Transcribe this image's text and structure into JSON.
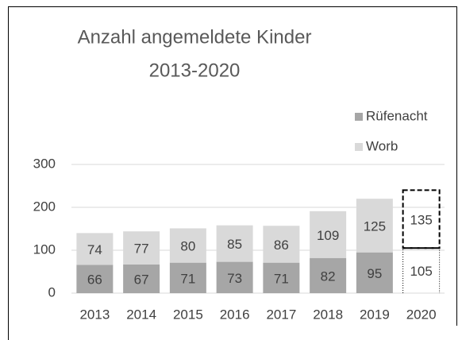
{
  "chart_data": {
    "type": "stacked-bar",
    "title": [
      "Anzahl angemeldete Kinder",
      "2013-2020"
    ],
    "categories": [
      "2013",
      "2014",
      "2015",
      "2016",
      "2017",
      "2018",
      "2019",
      "2020"
    ],
    "series": [
      {
        "name": "Rüfenacht",
        "color": "#a6a6a6",
        "values": [
          66,
          67,
          71,
          73,
          71,
          82,
          95,
          105
        ]
      },
      {
        "name": "Worb",
        "color": "#d9d9d9",
        "values": [
          74,
          77,
          80,
          85,
          86,
          109,
          125,
          135
        ]
      }
    ],
    "dashed": [
      false,
      false,
      false,
      false,
      false,
      false,
      false,
      true
    ],
    "ylim": [
      0,
      300
    ],
    "yticks": [
      0,
      100,
      200,
      300
    ],
    "grid": true,
    "legend": "top-right"
  }
}
